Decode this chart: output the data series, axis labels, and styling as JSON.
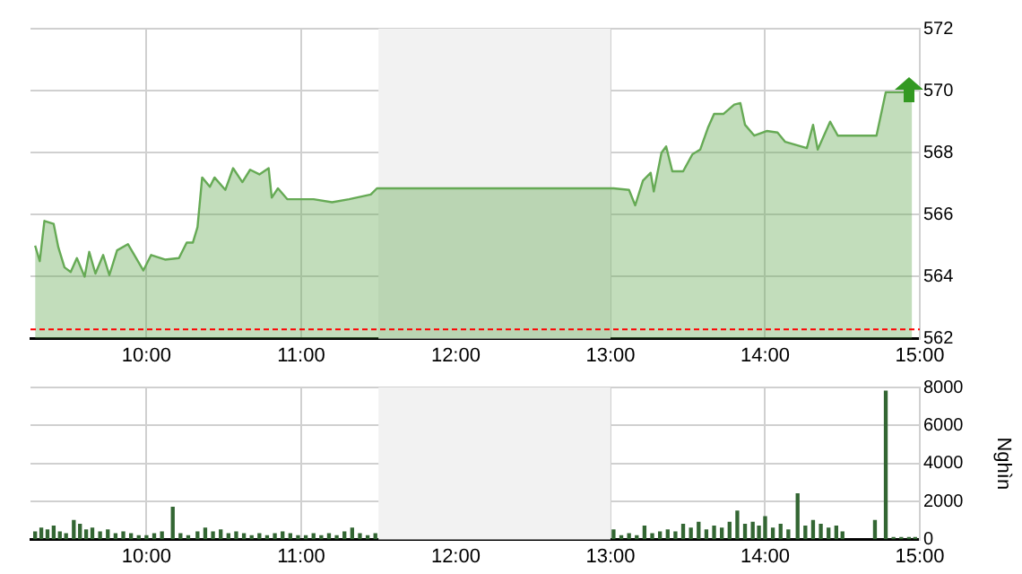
{
  "chart_data": [
    {
      "type": "area",
      "xlim": [
        9.25,
        15
      ],
      "xticks": [
        {
          "value": 10,
          "label": "10:00"
        },
        {
          "value": 11,
          "label": "11:00"
        },
        {
          "value": 12,
          "label": "12:00"
        },
        {
          "value": 13,
          "label": "13:00"
        },
        {
          "value": 14,
          "label": "14:00"
        },
        {
          "value": 15,
          "label": "15:00"
        }
      ],
      "ylim": [
        562,
        572
      ],
      "yticks": [
        562,
        564,
        566,
        568,
        570,
        572
      ],
      "grid": true,
      "legend": false,
      "x": [
        9.28,
        9.31,
        9.34,
        9.4,
        9.43,
        9.47,
        9.51,
        9.55,
        9.6,
        9.63,
        9.67,
        9.72,
        9.76,
        9.81,
        9.88,
        9.98,
        10.03,
        10.12,
        10.21,
        10.26,
        10.3,
        10.33,
        10.36,
        10.41,
        10.44,
        10.51,
        10.56,
        10.62,
        10.67,
        10.73,
        10.79,
        10.81,
        10.85,
        10.91,
        11.08,
        11.2,
        11.31,
        11.45,
        11.49,
        13.02,
        13.12,
        13.16,
        13.21,
        13.26,
        13.28,
        13.33,
        13.36,
        13.4,
        13.47,
        13.53,
        13.58,
        13.63,
        13.67,
        13.73,
        13.8,
        13.84,
        13.87,
        13.93,
        14.01,
        14.08,
        14.13,
        14.2,
        14.27,
        14.31,
        14.34,
        14.42,
        14.47,
        14.72,
        14.78,
        14.95
      ],
      "series": [
        {
          "color": "#66aa55",
          "values": [
            565.0,
            564.5,
            565.8,
            565.7,
            564.95,
            564.3,
            564.15,
            564.6,
            564.0,
            564.8,
            564.1,
            564.7,
            564.05,
            564.85,
            565.05,
            564.2,
            564.7,
            564.55,
            564.6,
            565.1,
            565.1,
            565.6,
            567.2,
            566.9,
            567.2,
            566.8,
            567.5,
            567.05,
            567.45,
            567.3,
            567.5,
            566.55,
            566.85,
            566.5,
            566.5,
            566.4,
            566.5,
            566.65,
            566.85,
            566.85,
            566.8,
            566.3,
            567.1,
            567.35,
            566.75,
            568.0,
            568.2,
            567.4,
            567.4,
            567.95,
            568.1,
            568.8,
            569.25,
            569.25,
            569.55,
            569.6,
            568.9,
            568.55,
            568.7,
            568.65,
            568.35,
            568.25,
            568.15,
            568.9,
            568.1,
            569.0,
            568.55,
            568.55,
            569.95,
            569.95
          ]
        }
      ],
      "bands": [
        {
          "axis": "x",
          "from": 11.5,
          "to": 13,
          "color": "#f2f2f2"
        }
      ],
      "ref_lines": [
        {
          "axis": "y",
          "value": 562.3,
          "color": "#ff0000",
          "line_style": "dashed"
        }
      ]
    },
    {
      "type": "bar",
      "ylabel": "Nghìn",
      "xlim": [
        9.25,
        15
      ],
      "xticks": [
        {
          "value": 10,
          "label": "10:00"
        },
        {
          "value": 11,
          "label": "11:00"
        },
        {
          "value": 12,
          "label": "12:00"
        },
        {
          "value": 13,
          "label": "13:00"
        },
        {
          "value": 14,
          "label": "14:00"
        },
        {
          "value": 15,
          "label": "15:00"
        }
      ],
      "ylim": [
        0,
        8000
      ],
      "yticks": [
        0,
        2000,
        4000,
        6000,
        8000
      ],
      "grid": true,
      "legend": false,
      "x": [
        9.28,
        9.32,
        9.36,
        9.4,
        9.44,
        9.48,
        9.53,
        9.57,
        9.61,
        9.65,
        9.7,
        9.75,
        9.8,
        9.85,
        9.9,
        9.95,
        10.0,
        10.05,
        10.1,
        10.17,
        10.22,
        10.27,
        10.33,
        10.38,
        10.43,
        10.48,
        10.53,
        10.58,
        10.63,
        10.68,
        10.73,
        10.78,
        10.83,
        10.88,
        10.93,
        10.98,
        11.03,
        11.08,
        11.13,
        11.18,
        11.23,
        11.28,
        11.33,
        11.38,
        11.43,
        11.48,
        13.02,
        13.07,
        13.12,
        13.17,
        13.22,
        13.27,
        13.32,
        13.37,
        13.42,
        13.47,
        13.52,
        13.57,
        13.62,
        13.67,
        13.72,
        13.77,
        13.82,
        13.87,
        13.92,
        13.96,
        14.0,
        14.05,
        14.1,
        14.15,
        14.21,
        14.26,
        14.31,
        14.36,
        14.41,
        14.46,
        14.5,
        14.71,
        14.78,
        14.83,
        14.88,
        14.93,
        14.97
      ],
      "series": [
        {
          "color": "#336633",
          "values": [
            400,
            600,
            500,
            700,
            400,
            300,
            1000,
            800,
            500,
            600,
            400,
            500,
            300,
            400,
            300,
            200,
            200,
            300,
            400,
            1700,
            300,
            200,
            400,
            600,
            400,
            500,
            300,
            400,
            300,
            200,
            300,
            200,
            300,
            400,
            300,
            200,
            200,
            300,
            200,
            300,
            200,
            400,
            600,
            300,
            200,
            300,
            500,
            200,
            300,
            200,
            700,
            300,
            400,
            500,
            400,
            800,
            600,
            900,
            500,
            700,
            600,
            900,
            1500,
            800,
            900,
            700,
            1200,
            600,
            800,
            500,
            2400,
            700,
            1000,
            800,
            600,
            700,
            400,
            1000,
            7800,
            100,
            100,
            100,
            100
          ]
        }
      ],
      "bands": [
        {
          "axis": "x",
          "from": 11.5,
          "to": 13,
          "color": "#f2f2f2"
        }
      ]
    }
  ]
}
